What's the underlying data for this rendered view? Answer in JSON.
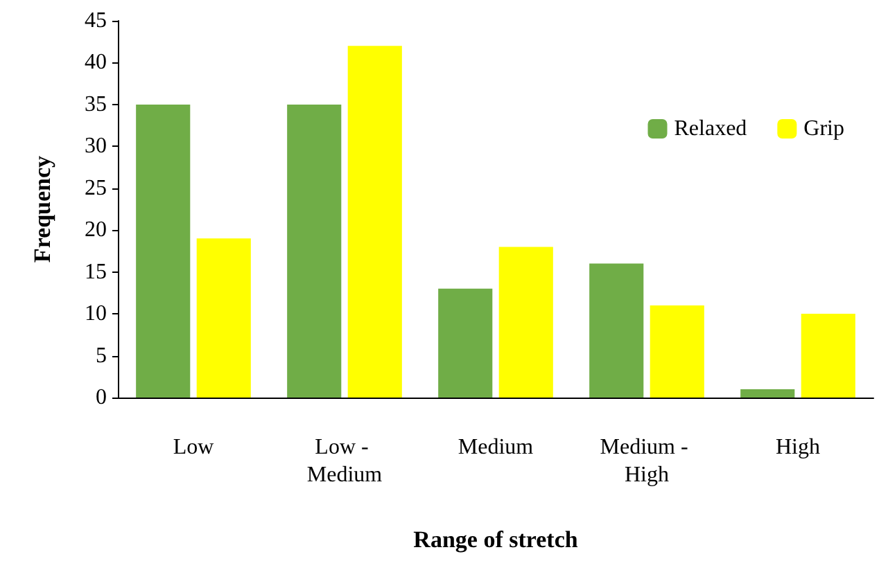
{
  "chart_data": {
    "type": "bar",
    "xlabel": "Range of stretch",
    "ylabel": "Frequency",
    "categories": [
      "Low",
      "Low - Medium",
      "Medium",
      "Medium - High",
      "High"
    ],
    "series": [
      {
        "name": "Relaxed",
        "color": "#70ad47",
        "values": [
          35,
          35,
          13,
          16,
          1
        ]
      },
      {
        "name": "Grip",
        "color": "#ffff00",
        "values": [
          19,
          42,
          18,
          11,
          10
        ]
      }
    ],
    "ylim": [
      0,
      45
    ],
    "yticks": [
      0,
      5,
      10,
      15,
      20,
      25,
      30,
      35,
      40,
      45
    ],
    "grid": false,
    "legend": "top right"
  }
}
